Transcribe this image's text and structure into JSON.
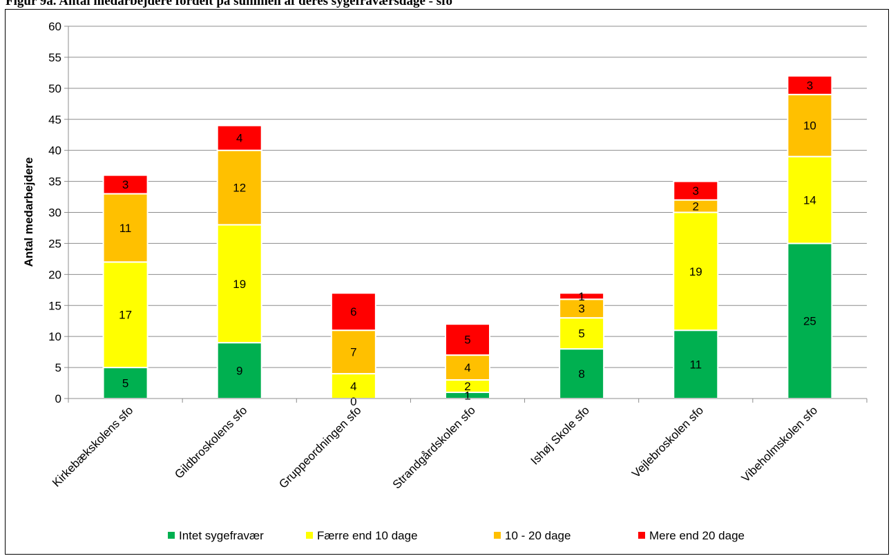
{
  "title": "Figur 9a. Antal medarbejdere fordelt på summen af deres sygefraværsdage - sfo",
  "chart_data": {
    "type": "bar",
    "stacked": true,
    "title": "",
    "xlabel": "",
    "ylabel": "Antal medarbejdere",
    "ylim": [
      0,
      60
    ],
    "yticks": [
      0,
      5,
      10,
      15,
      20,
      25,
      30,
      35,
      40,
      45,
      50,
      55,
      60
    ],
    "grid": true,
    "legend_position": "bottom",
    "categories": [
      "Kirkebækskolens sfo",
      "Gildbroskolens sfo",
      "Gruppeordningen sfo",
      "Strandgårdskolen sfo",
      "Ishøj Skole sfo",
      "Vejlebroskolen sfo",
      "Vibeholmskolen sfo"
    ],
    "series": [
      {
        "name": "Intet sygefravær",
        "color": "#00b050",
        "values": [
          5,
          9,
          0,
          1,
          8,
          11,
          25
        ]
      },
      {
        "name": "Færre end 10 dage",
        "color": "#ffff00",
        "values": [
          17,
          19,
          4,
          2,
          5,
          19,
          14
        ]
      },
      {
        "name": "10 - 20 dage",
        "color": "#ffc000",
        "values": [
          11,
          12,
          7,
          4,
          3,
          2,
          10
        ]
      },
      {
        "name": "Mere end 20 dage",
        "color": "#ff0000",
        "values": [
          3,
          4,
          6,
          5,
          1,
          3,
          3
        ]
      }
    ]
  }
}
